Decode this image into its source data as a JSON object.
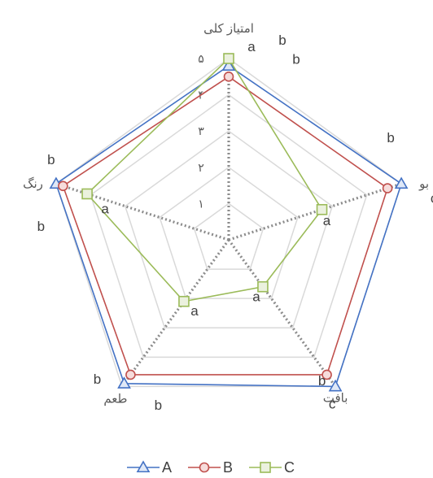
{
  "chart_data": {
    "type": "radar",
    "categories": [
      "امتیاز کلی",
      "بو",
      "بافت",
      "طعم",
      "رنگ"
    ],
    "ticks": [
      "۱",
      "۲",
      "۳",
      "۴",
      "۵"
    ],
    "rmax": 5,
    "series": [
      {
        "name": "A",
        "values": [
          4.8,
          5.0,
          5.0,
          4.9,
          5.0
        ],
        "color": "#4472C4",
        "marker": "triangle"
      },
      {
        "name": "B",
        "values": [
          4.5,
          4.6,
          4.6,
          4.6,
          4.8
        ],
        "color": "#C0504D",
        "marker": "circle"
      },
      {
        "name": "C",
        "values": [
          5.0,
          2.7,
          1.6,
          2.1,
          4.1
        ],
        "color": "#9BBB59",
        "marker": "square"
      }
    ],
    "significance_letters": [
      {
        "text": "a",
        "near": "C-0"
      },
      {
        "text": "b",
        "near": "A-0"
      },
      {
        "text": "b",
        "near": "B-0"
      },
      {
        "text": "b",
        "near": "A-1"
      },
      {
        "text": "c",
        "near": "B-1"
      },
      {
        "text": "a",
        "near": "C-1"
      },
      {
        "text": "b",
        "near": "B-2"
      },
      {
        "text": "c",
        "near": "A-2"
      },
      {
        "text": "a",
        "near": "C-2"
      },
      {
        "text": "b",
        "near": "A-3"
      },
      {
        "text": "b",
        "near": "B-3"
      },
      {
        "text": "a",
        "near": "C-3"
      },
      {
        "text": "b",
        "near": "A-4"
      },
      {
        "text": "b",
        "near": "B-4"
      },
      {
        "text": "a",
        "near": "C-4"
      }
    ],
    "grid": true,
    "legend": "bottom"
  }
}
